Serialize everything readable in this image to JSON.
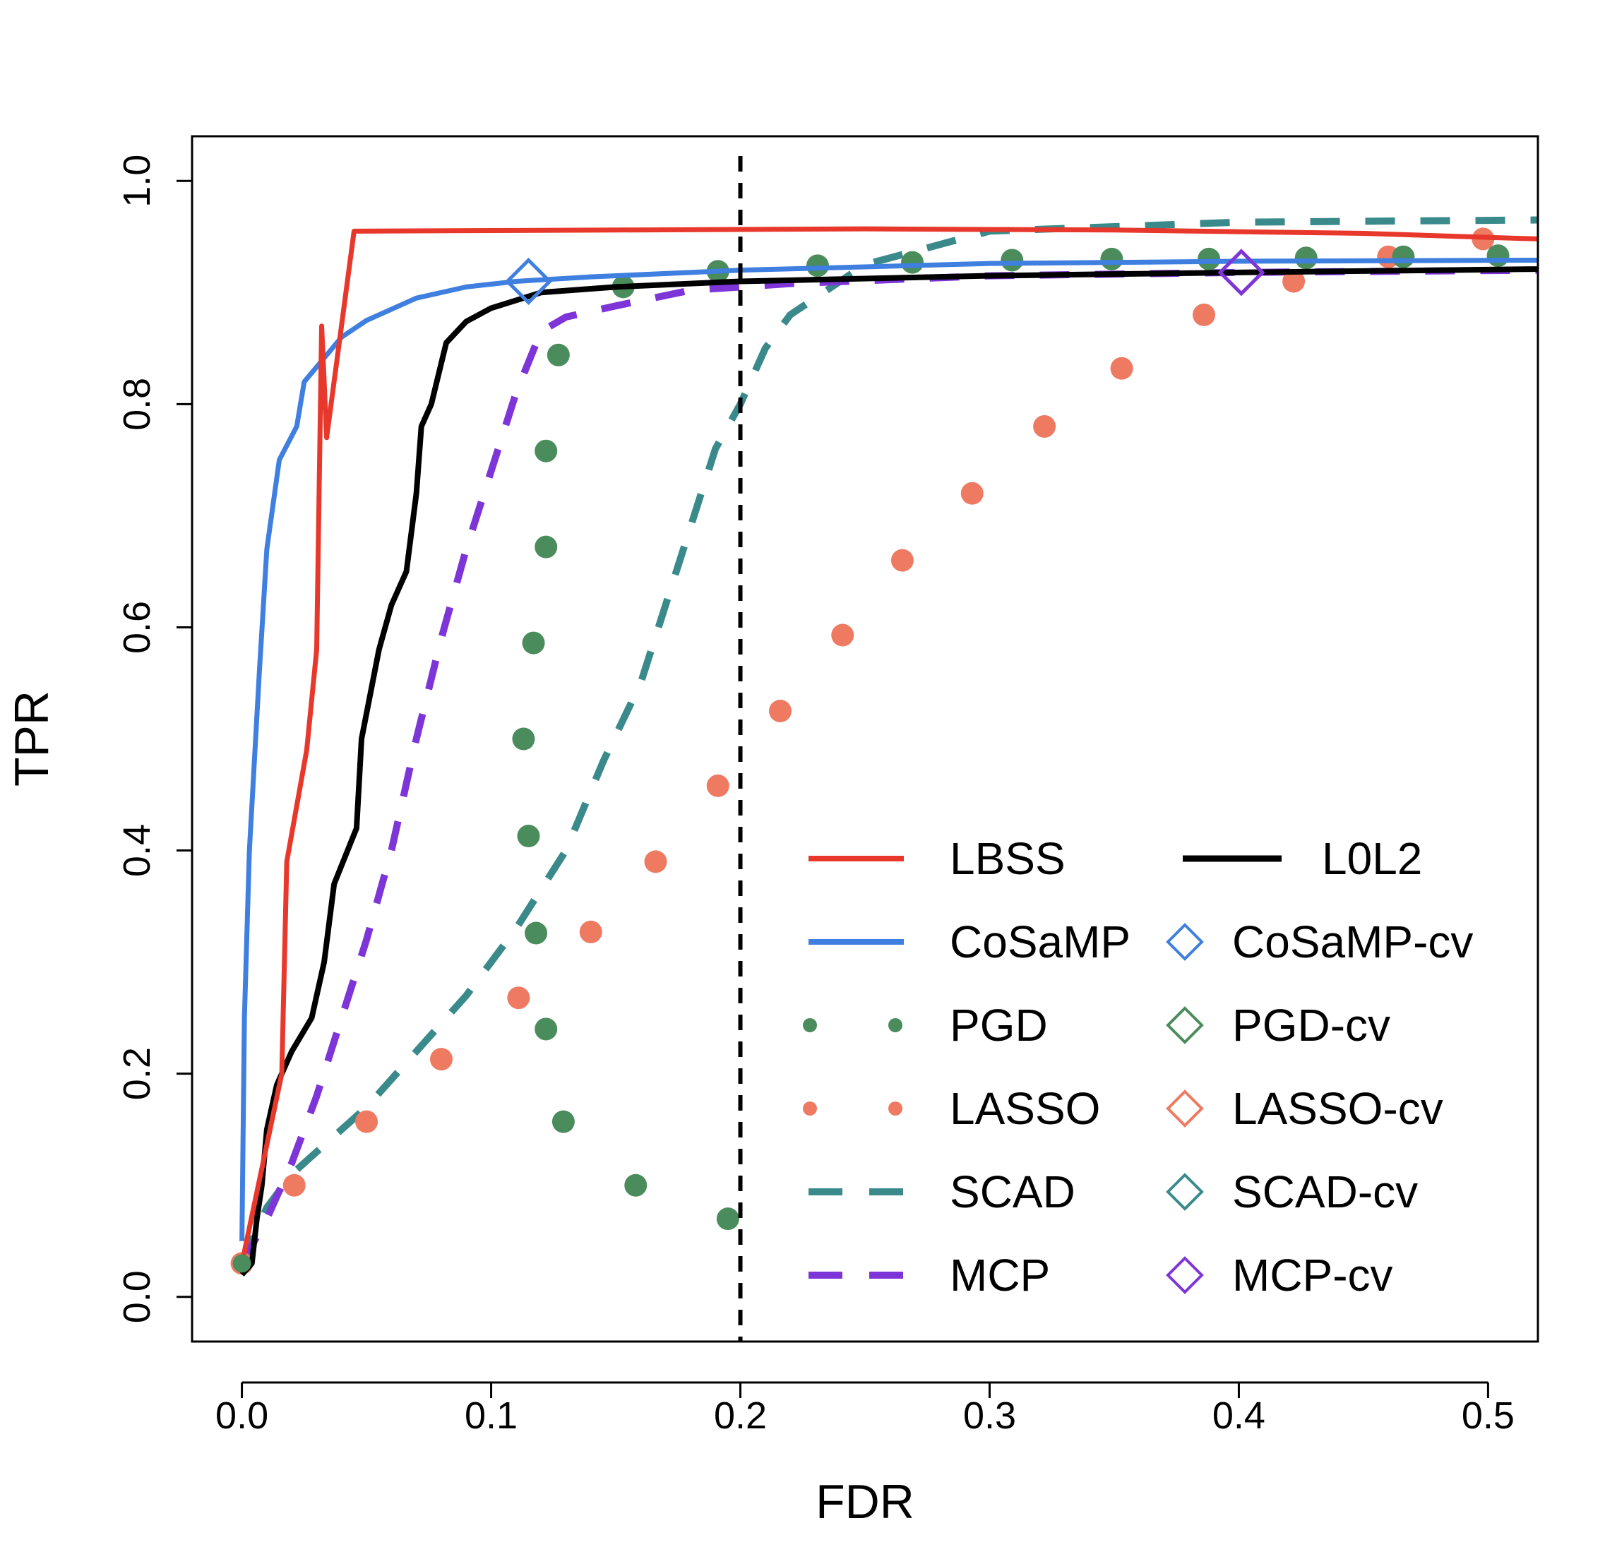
{
  "chart_data": {
    "type": "line",
    "title": "",
    "xlabel": "FDR",
    "ylabel": "TPR",
    "xlim": [
      -0.02,
      0.52
    ],
    "ylim": [
      -0.04,
      1.04
    ],
    "xticks": [
      "0.0",
      "0.1",
      "0.2",
      "0.3",
      "0.4",
      "0.5"
    ],
    "yticks": [
      "0.0",
      "0.2",
      "0.4",
      "0.6",
      "0.8",
      "1.0"
    ],
    "grid": false,
    "legend_position": "bottom-right",
    "reference_line": {
      "axis": "x",
      "value": 0.2,
      "style": "dashed",
      "color": "#000000"
    },
    "series": [
      {
        "name": "LBSS",
        "style": "solid",
        "color": "#E8382C",
        "x": [
          0.0,
          0.016,
          0.018,
          0.026,
          0.03,
          0.032,
          0.034,
          0.045,
          0.15,
          0.25,
          0.35,
          0.45,
          0.52
        ],
        "y": [
          0.03,
          0.2,
          0.39,
          0.49,
          0.58,
          0.87,
          0.77,
          0.955,
          0.956,
          0.957,
          0.956,
          0.953,
          0.948
        ]
      },
      {
        "name": "CoSaMP",
        "style": "solid",
        "color": "#3F7FE0",
        "x": [
          0.0,
          0.001,
          0.003,
          0.005,
          0.007,
          0.01,
          0.015,
          0.022,
          0.025,
          0.04,
          0.05,
          0.07,
          0.09,
          0.11,
          0.14,
          0.2,
          0.3,
          0.4,
          0.52
        ],
        "y": [
          0.05,
          0.25,
          0.4,
          0.48,
          0.56,
          0.67,
          0.75,
          0.78,
          0.82,
          0.86,
          0.875,
          0.895,
          0.905,
          0.91,
          0.914,
          0.92,
          0.926,
          0.928,
          0.929
        ]
      },
      {
        "name": "L0L2",
        "style": "solid",
        "color": "#000000",
        "x": [
          0.0,
          0.004,
          0.006,
          0.008,
          0.01,
          0.014,
          0.02,
          0.028,
          0.033,
          0.037,
          0.046,
          0.048,
          0.055,
          0.06,
          0.066,
          0.07,
          0.072,
          0.076,
          0.082,
          0.09,
          0.1,
          0.12,
          0.15,
          0.2,
          0.3,
          0.4,
          0.52
        ],
        "y": [
          0.02,
          0.03,
          0.07,
          0.1,
          0.15,
          0.19,
          0.22,
          0.25,
          0.3,
          0.37,
          0.42,
          0.5,
          0.58,
          0.62,
          0.65,
          0.72,
          0.78,
          0.8,
          0.855,
          0.874,
          0.886,
          0.9,
          0.905,
          0.91,
          0.915,
          0.918,
          0.921
        ]
      },
      {
        "name": "PGD",
        "style": "points",
        "color": "#4B8C5C",
        "x": [
          0.195,
          0.158,
          0.129,
          0.122,
          0.118,
          0.115,
          0.113,
          0.117,
          0.122,
          0.122,
          0.127,
          0.153,
          0.191,
          0.231,
          0.269,
          0.309,
          0.349,
          0.388,
          0.427,
          0.466,
          0.504
        ],
        "y": [
          0.07,
          0.1,
          0.157,
          0.24,
          0.326,
          0.413,
          0.5,
          0.586,
          0.672,
          0.758,
          0.844,
          0.905,
          0.919,
          0.924,
          0.927,
          0.929,
          0.93,
          0.93,
          0.931,
          0.932,
          0.933
        ]
      },
      {
        "name": "LASSO",
        "style": "points",
        "color": "#EE7A62",
        "x": [
          0.0,
          0.021,
          0.05,
          0.08,
          0.111,
          0.14,
          0.166,
          0.191,
          0.216,
          0.241,
          0.265,
          0.293,
          0.322,
          0.353,
          0.386,
          0.422,
          0.46,
          0.498
        ],
        "y": [
          0.03,
          0.1,
          0.157,
          0.213,
          0.268,
          0.327,
          0.39,
          0.458,
          0.525,
          0.593,
          0.66,
          0.72,
          0.78,
          0.832,
          0.88,
          0.91,
          0.932,
          0.948
        ]
      },
      {
        "name": "SCAD",
        "style": "dashed",
        "color": "#3A8A8C",
        "x": [
          0.0,
          0.01,
          0.02,
          0.035,
          0.05,
          0.07,
          0.09,
          0.11,
          0.13,
          0.145,
          0.16,
          0.17,
          0.18,
          0.19,
          0.2,
          0.21,
          0.22,
          0.25,
          0.3,
          0.4,
          0.52
        ],
        "y": [
          0.03,
          0.08,
          0.11,
          0.14,
          0.17,
          0.22,
          0.27,
          0.33,
          0.4,
          0.48,
          0.55,
          0.62,
          0.69,
          0.76,
          0.8,
          0.85,
          0.88,
          0.925,
          0.955,
          0.963,
          0.965
        ]
      },
      {
        "name": "MCP",
        "style": "dashed",
        "color": "#7E35D8",
        "x": [
          0.0,
          0.01,
          0.02,
          0.03,
          0.04,
          0.05,
          0.06,
          0.07,
          0.08,
          0.09,
          0.1,
          0.11,
          0.12,
          0.13,
          0.15,
          0.18,
          0.22,
          0.3,
          0.4,
          0.52
        ],
        "y": [
          0.03,
          0.07,
          0.12,
          0.18,
          0.25,
          0.32,
          0.4,
          0.5,
          0.59,
          0.67,
          0.74,
          0.81,
          0.865,
          0.878,
          0.888,
          0.902,
          0.908,
          0.915,
          0.918,
          0.92
        ]
      },
      {
        "name": "CoSaMP-cv",
        "style": "diamond",
        "color": "#3F7FE0",
        "x": [
          0.115
        ],
        "y": [
          0.91
        ]
      },
      {
        "name": "PGD-cv",
        "style": "diamond",
        "color": "#4B8C5C",
        "x": [],
        "y": []
      },
      {
        "name": "LASSO-cv",
        "style": "diamond",
        "color": "#EE7A62",
        "x": [],
        "y": []
      },
      {
        "name": "SCAD-cv",
        "style": "diamond",
        "color": "#3A8A8C",
        "x": [],
        "y": []
      },
      {
        "name": "MCP-cv",
        "style": "diamond",
        "color": "#7E35D8",
        "x": [
          0.401
        ],
        "y": [
          0.918
        ]
      }
    ],
    "extra_points": [
      {
        "color": "#4B8C5C",
        "x": 0.0,
        "y": 0.03
      }
    ]
  }
}
